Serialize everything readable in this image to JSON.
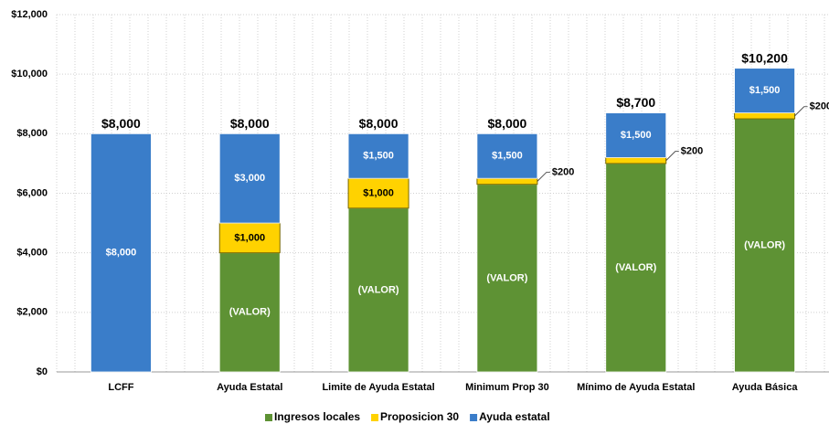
{
  "chart_data": {
    "type": "stacked_bar",
    "categories": [
      "LCFF",
      "Ayuda Estatal",
      "Limite de Ayuda Estatal",
      "Minimum Prop 30",
      "Mínimo de Ayuda Estatal",
      "Ayuda Básica"
    ],
    "series": [
      {
        "name": "Ingresos locales",
        "color": "#5e9234",
        "values": [
          0,
          4000,
          5500,
          6300,
          7000,
          8500
        ],
        "value_labels": [
          null,
          "(VALOR)",
          "(VALOR)",
          "(VALOR)",
          "(VALOR)",
          "(VALOR)"
        ]
      },
      {
        "name": "Proposicion 30",
        "color": "#ffd200",
        "values": [
          0,
          1000,
          1000,
          200,
          200,
          200
        ],
        "value_labels": [
          null,
          "$1,000",
          "$1,000",
          "$200",
          "$200",
          "$200"
        ]
      },
      {
        "name": "Ayuda estatal",
        "color": "#3a7dc9",
        "values": [
          8000,
          3000,
          1500,
          1500,
          1500,
          1500
        ],
        "value_labels": [
          "$8,000",
          "$3,000",
          "$1,500",
          "$1,500",
          "$1,500",
          "$1,500"
        ]
      }
    ],
    "total_labels": [
      "$8,000",
      "$8,000",
      "$8,000",
      "$8,000",
      "$8,700",
      "$10,200"
    ],
    "ylim": [
      0,
      12000
    ],
    "yticks": [
      {
        "value": 0,
        "label": "$0"
      },
      {
        "value": 2000,
        "label": "$2,000"
      },
      {
        "value": 4000,
        "label": "$4,000"
      },
      {
        "value": 6000,
        "label": "$6,000"
      },
      {
        "value": 8000,
        "label": "$8,000"
      },
      {
        "value": 10000,
        "label": "$10,000"
      },
      {
        "value": 12000,
        "label": "$12,000"
      }
    ],
    "grid": true
  }
}
